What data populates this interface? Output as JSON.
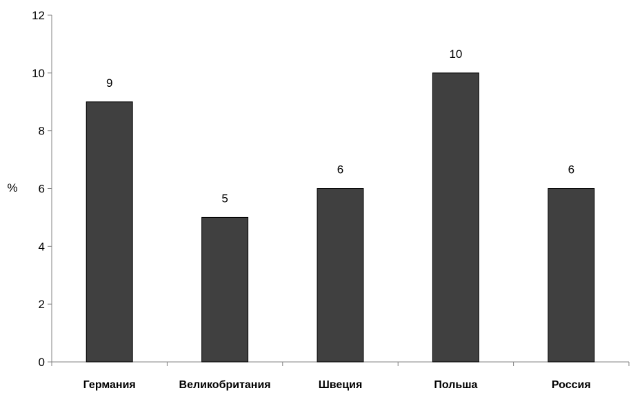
{
  "chart_data": {
    "type": "bar",
    "title": "",
    "xlabel": "",
    "ylabel": "%",
    "categories": [
      "Германия",
      "Великобритания",
      "Швеция",
      "Польша",
      "Россия"
    ],
    "values": [
      9,
      5,
      6,
      10,
      6
    ],
    "data_labels": [
      "9",
      "5",
      "6",
      "10",
      "6"
    ],
    "ylim": [
      0,
      12
    ],
    "yticks": [
      0,
      2,
      4,
      6,
      8,
      10,
      12
    ],
    "ytick_labels": [
      "0",
      "2",
      "4",
      "6",
      "8",
      "10",
      "12"
    ],
    "grid": false,
    "legend": "none",
    "colors": {
      "bar_fill": "#404040",
      "bar_stroke": "#000000",
      "axis": "#808080"
    }
  }
}
